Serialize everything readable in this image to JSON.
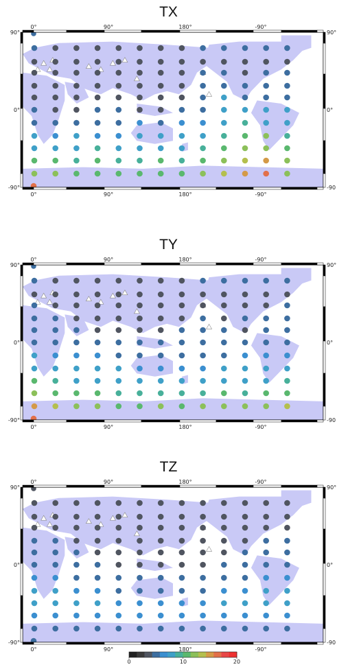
{
  "colors": {
    "land": "#c9c9f6",
    "frame_dark": "#000000",
    "frame_light": "#ffffff",
    "station_open": "#ffffff"
  },
  "lon_ticks": [
    "0°",
    "90°",
    "180°",
    "-90°"
  ],
  "lat_ticks": [
    "90°",
    "0°",
    "-90°"
  ],
  "lat_tick_right_clipped": [
    "90°",
    "0°",
    "-90"
  ],
  "colorbar": {
    "ticks": [
      "0",
      "10",
      "20"
    ],
    "colormap": [
      "#222222",
      "#3a3a3a",
      "#505560",
      "#3d6ea0",
      "#3b8fd0",
      "#3fa0c8",
      "#48b09a",
      "#5ab86e",
      "#8cc05a",
      "#b4bf4e",
      "#d49a48",
      "#e2704a",
      "#e84848",
      "#ee3030"
    ],
    "range": [
      0,
      20
    ]
  },
  "panels": [
    {
      "title": "TX",
      "rows": [
        [
          4,
          3,
          3,
          3,
          3,
          3,
          3,
          3,
          4,
          5,
          4,
          4,
          4
        ],
        [
          3,
          3,
          3,
          3,
          3,
          3,
          3,
          3,
          3,
          3,
          3,
          3,
          3
        ],
        [
          3,
          3,
          3,
          3,
          3,
          3,
          3,
          3,
          4,
          4,
          3,
          4,
          4
        ],
        [
          3,
          3,
          3,
          3,
          3,
          3,
          3,
          3,
          4,
          4,
          4,
          4,
          5
        ],
        [
          3,
          3,
          3,
          3,
          3,
          3,
          3,
          3,
          5,
          7,
          4,
          4,
          5
        ],
        [
          4,
          3,
          3,
          4,
          4,
          3,
          3,
          4,
          5,
          8,
          8,
          8,
          7
        ],
        [
          5,
          5,
          4,
          4,
          5,
          6,
          5,
          6,
          6,
          8,
          9,
          8,
          7
        ],
        [
          7,
          6,
          7,
          6,
          6,
          7,
          7,
          7,
          7,
          9,
          11,
          12,
          9
        ],
        [
          8,
          8,
          8,
          9,
          8,
          8,
          8,
          8,
          9,
          11,
          12,
          13,
          11
        ],
        [
          10,
          10,
          9,
          10,
          9,
          9,
          10,
          9,
          10,
          12,
          14,
          15,
          12
        ],
        [
          12,
          12,
          11,
          11,
          10,
          10,
          11,
          11,
          12,
          14,
          16,
          17,
          13
        ],
        [
          17
        ]
      ],
      "first_dot": 4
    },
    {
      "title": "TY",
      "rows": [
        [
          4,
          3,
          3,
          3,
          3,
          3,
          3,
          3,
          4,
          4,
          4,
          4,
          4
        ],
        [
          3,
          3,
          3,
          3,
          3,
          3,
          3,
          3,
          3,
          3,
          3,
          3,
          3
        ],
        [
          4,
          3,
          3,
          3,
          3,
          3,
          3,
          3,
          3,
          3,
          3,
          3,
          4
        ],
        [
          4,
          4,
          3,
          3,
          3,
          3,
          3,
          3,
          4,
          3,
          4,
          4,
          4
        ],
        [
          4,
          4,
          4,
          3,
          3,
          3,
          3,
          4,
          4,
          4,
          3,
          4,
          5
        ],
        [
          5,
          5,
          5,
          4,
          4,
          4,
          4,
          4,
          4,
          4,
          5,
          5,
          5
        ],
        [
          7,
          6,
          6,
          6,
          5,
          5,
          5,
          5,
          5,
          5,
          6,
          6,
          6
        ],
        [
          8,
          7,
          7,
          7,
          7,
          6,
          6,
          6,
          6,
          7,
          7,
          7,
          7
        ],
        [
          10,
          9,
          8,
          8,
          8,
          7,
          7,
          7,
          8,
          8,
          8,
          8,
          9
        ],
        [
          13,
          11,
          10,
          10,
          9,
          9,
          9,
          9,
          9,
          10,
          9,
          10,
          11
        ],
        [
          16,
          14,
          12,
          12,
          11,
          11,
          12,
          11,
          12,
          12,
          12,
          13,
          14
        ],
        [
          17
        ]
      ],
      "first_dot": 4
    },
    {
      "title": "TZ",
      "rows": [
        [
          3,
          3,
          3,
          3,
          3,
          3,
          3,
          3,
          3,
          3,
          3,
          3,
          3
        ],
        [
          3,
          3,
          3,
          3,
          3,
          3,
          3,
          3,
          3,
          3,
          3,
          3,
          3
        ],
        [
          3,
          3,
          3,
          3,
          3,
          3,
          3,
          3,
          3,
          3,
          3,
          3,
          3
        ],
        [
          4,
          4,
          3,
          3,
          3,
          3,
          3,
          3,
          3,
          3,
          3,
          4,
          4
        ],
        [
          4,
          4,
          4,
          3,
          3,
          3,
          3,
          3,
          3,
          3,
          4,
          4,
          4
        ],
        [
          5,
          5,
          5,
          4,
          3,
          3,
          3,
          3,
          3,
          4,
          4,
          5,
          5
        ],
        [
          6,
          6,
          5,
          5,
          4,
          4,
          4,
          4,
          4,
          5,
          5,
          6,
          6
        ],
        [
          7,
          7,
          6,
          6,
          5,
          5,
          5,
          5,
          5,
          6,
          6,
          7,
          7
        ],
        [
          7,
          7,
          7,
          7,
          6,
          6,
          6,
          6,
          6,
          7,
          7,
          7,
          7
        ],
        [
          6,
          6,
          6,
          6,
          6,
          6,
          6,
          6,
          6,
          6,
          6,
          6,
          6
        ],
        [
          5,
          5,
          5,
          5,
          5,
          5,
          5,
          5,
          5,
          5,
          5,
          5,
          5
        ],
        [
          5
        ]
      ],
      "first_dot": 3
    }
  ]
}
